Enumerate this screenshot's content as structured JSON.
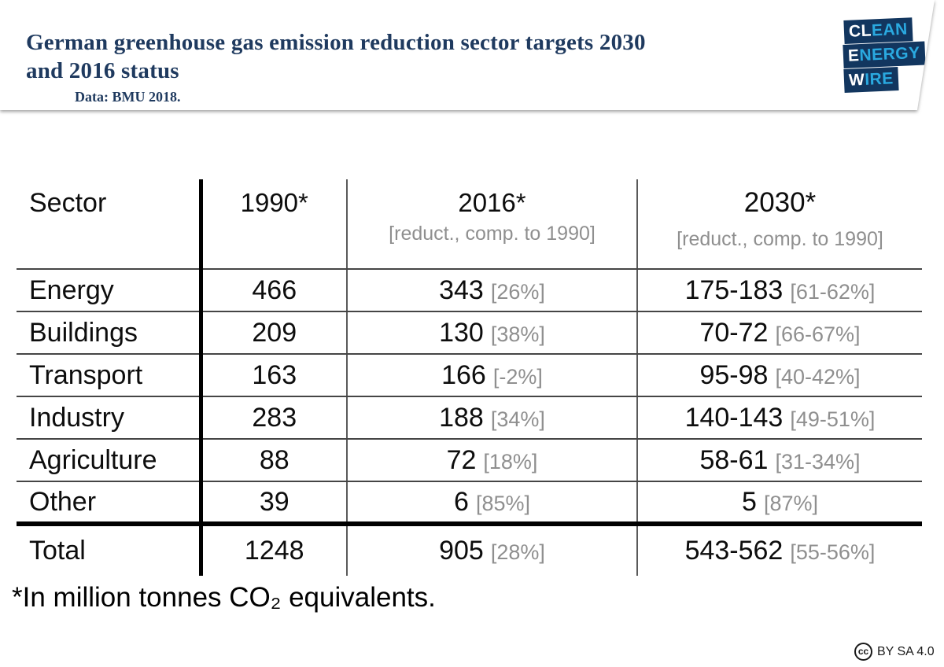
{
  "header": {
    "title_line1": "German greenhouse gas emission reduction sector targets 2030",
    "title_line2": "and 2016 status",
    "subtitle": "Data: BMU 2018.",
    "logo": {
      "lines": [
        {
          "white": "CL",
          "cyan": "EAN"
        },
        {
          "white": "E",
          "cyan": "NERGY"
        },
        {
          "white": "W",
          "cyan": "IRE"
        }
      ]
    }
  },
  "table": {
    "columns": {
      "sector": "Sector",
      "y1990": "1990*",
      "y2016": "2016*",
      "y2016_sub": "[reduct., comp. to 1990]",
      "y2030": "2030*",
      "y2030_sub": "[reduct., comp. to 1990]"
    },
    "rows": [
      {
        "sector": "Energy",
        "v1990": "466",
        "v2016": "343",
        "p2016": "[26%]",
        "v2030": "175-183",
        "p2030": "[61-62%]"
      },
      {
        "sector": "Buildings",
        "v1990": "209",
        "v2016": "130",
        "p2016": "[38%]",
        "v2030": "70-72",
        "p2030": "[66-67%]"
      },
      {
        "sector": "Transport",
        "v1990": "163",
        "v2016": "166",
        "p2016": "[-2%]",
        "v2030": "95-98",
        "p2030": "[40-42%]"
      },
      {
        "sector": "Industry",
        "v1990": "283",
        "v2016": "188",
        "p2016": "[34%]",
        "v2030": "140-143",
        "p2030": "[49-51%]"
      },
      {
        "sector": "Agriculture",
        "v1990": "88",
        "v2016": "72",
        "p2016": "[18%]",
        "v2030": "58-61",
        "p2030": "[31-34%]"
      },
      {
        "sector": "Other",
        "v1990": "39",
        "v2016": "6",
        "p2016": "[85%]",
        "v2030": "5",
        "p2030": "[87%]"
      },
      {
        "sector": "Total",
        "v1990": "1248",
        "v2016": "905",
        "p2016": "[28%]",
        "v2030": "543-562",
        "p2030": "[55-56%]"
      }
    ]
  },
  "footnote": "*In million tonnes CO₂ equivalents.",
  "license": {
    "icon_text": "cc",
    "label": "BY SA 4.0"
  },
  "colors": {
    "title_navy": "#1f3a5f",
    "logo_navy": "#12365f",
    "logo_cyan": "#2aa9e0",
    "muted_gray": "#8f8f8f",
    "thin_line": "#454545",
    "thin_vertical_line": "#5a5a5a"
  },
  "chart_data": {
    "type": "table",
    "title": "German greenhouse gas emission reduction sector targets 2030 and 2016 status",
    "source": "Data: BMU 2018.",
    "unit_note": "*In million tonnes CO₂ equivalents.",
    "columns": [
      "Sector",
      "1990*",
      "2016* [reduct., comp. to 1990]",
      "2030* [reduct., comp. to 1990]"
    ],
    "rows": [
      {
        "sector": "Energy",
        "y1990": 466,
        "y2016": 343,
        "y2016_reduction": "26%",
        "y2030": "175-183",
        "y2030_reduction": "61-62%"
      },
      {
        "sector": "Buildings",
        "y1990": 209,
        "y2016": 130,
        "y2016_reduction": "38%",
        "y2030": "70-72",
        "y2030_reduction": "66-67%"
      },
      {
        "sector": "Transport",
        "y1990": 163,
        "y2016": 166,
        "y2016_reduction": "-2%",
        "y2030": "95-98",
        "y2030_reduction": "40-42%"
      },
      {
        "sector": "Industry",
        "y1990": 283,
        "y2016": 188,
        "y2016_reduction": "34%",
        "y2030": "140-143",
        "y2030_reduction": "49-51%"
      },
      {
        "sector": "Agriculture",
        "y1990": 88,
        "y2016": 72,
        "y2016_reduction": "18%",
        "y2030": "58-61",
        "y2030_reduction": "31-34%"
      },
      {
        "sector": "Other",
        "y1990": 39,
        "y2016": 6,
        "y2016_reduction": "85%",
        "y2030": "5",
        "y2030_reduction": "87%"
      },
      {
        "sector": "Total",
        "y1990": 1248,
        "y2016": 905,
        "y2016_reduction": "28%",
        "y2030": "543-562",
        "y2030_reduction": "55-56%"
      }
    ]
  }
}
